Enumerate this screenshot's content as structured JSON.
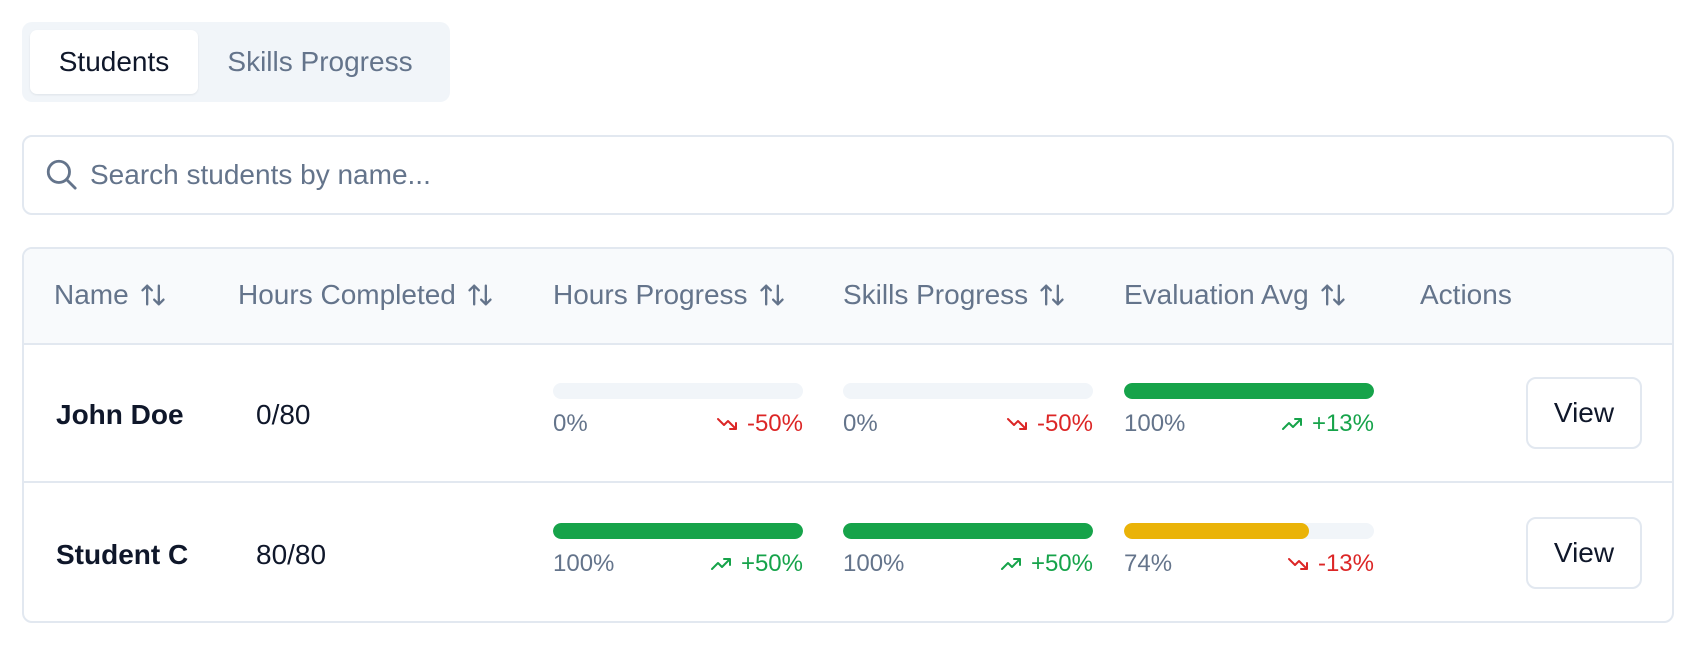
{
  "tabs": [
    {
      "label": "Students",
      "active": true
    },
    {
      "label": "Skills Progress",
      "active": false
    }
  ],
  "search": {
    "placeholder": "Search students by name...",
    "value": "",
    "icon": "search-icon"
  },
  "table": {
    "headers": {
      "name": "Name",
      "hours_completed": "Hours Completed",
      "hours_progress": "Hours Progress",
      "skills_progress": "Skills Progress",
      "evaluation_avg": "Evaluation Avg",
      "actions": "Actions"
    },
    "rows": [
      {
        "name": "John Doe",
        "hours": "0/80",
        "hours_progress": {
          "value": 0,
          "label": "0%",
          "trend": "-50%",
          "direction": "down"
        },
        "skills_progress": {
          "value": 0,
          "label": "0%",
          "trend": "-50%",
          "direction": "down"
        },
        "evaluation": {
          "value": 100,
          "label": "100%",
          "trend": "+13%",
          "direction": "up"
        },
        "action": "View"
      },
      {
        "name": "Student C",
        "hours": "80/80",
        "hours_progress": {
          "value": 100,
          "label": "100%",
          "trend": "+50%",
          "direction": "up"
        },
        "skills_progress": {
          "value": 100,
          "label": "100%",
          "trend": "+50%",
          "direction": "up"
        },
        "evaluation": {
          "value": 74,
          "label": "74%",
          "trend": "-13%",
          "direction": "down"
        },
        "action": "View"
      }
    ]
  },
  "colors": {
    "good": "#16a34a",
    "warn": "#eab308",
    "down": "#dc2626",
    "up": "#16a34a",
    "track": "#f1f5f9"
  }
}
